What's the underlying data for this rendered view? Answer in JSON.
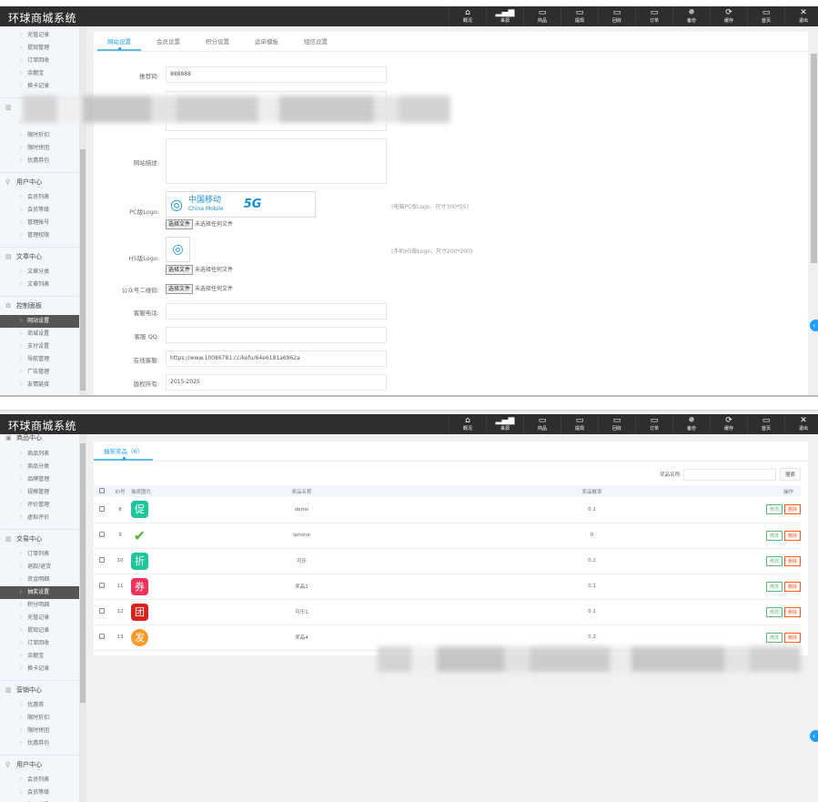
{
  "app_title": "环球商城系统",
  "topnav": [
    {
      "label": "概况",
      "icon": "home-icon",
      "glyph": "⌂"
    },
    {
      "label": "来源",
      "icon": "signal-icon",
      "glyph": "▂▄▆"
    },
    {
      "label": "商品",
      "icon": "monitor-icon",
      "glyph": "▭"
    },
    {
      "label": "提现",
      "icon": "monitor-icon",
      "glyph": "▭"
    },
    {
      "label": "回收",
      "icon": "monitor-icon",
      "glyph": "▭"
    },
    {
      "label": "订单",
      "icon": "monitor-icon",
      "glyph": "▭"
    },
    {
      "label": "备份",
      "icon": "gear-icon",
      "glyph": "✵"
    },
    {
      "label": "缓存",
      "icon": "refresh-icon",
      "glyph": "⟳"
    },
    {
      "label": "首页",
      "icon": "monitor-icon",
      "glyph": "▭"
    },
    {
      "label": "退出",
      "icon": "close-icon",
      "glyph": "✕"
    }
  ],
  "screen1": {
    "sidebar": [
      {
        "type": "item",
        "label": "充值记录"
      },
      {
        "type": "item",
        "label": "提现管理"
      },
      {
        "type": "item",
        "label": "订单回收"
      },
      {
        "type": "item",
        "label": "余额宝"
      },
      {
        "type": "item",
        "label": "换卡记录"
      },
      {
        "type": "section",
        "label": "",
        "icon": "chart-icon",
        "glyph": "▥",
        "blurred": true
      },
      {
        "type": "item",
        "label": "",
        "blurred": true
      },
      {
        "type": "item",
        "label": "限时折扣"
      },
      {
        "type": "item",
        "label": "限时拼团"
      },
      {
        "type": "item",
        "label": "优惠券包"
      },
      {
        "type": "section",
        "label": "用户中心",
        "icon": "user-icon",
        "glyph": "⚲"
      },
      {
        "type": "item",
        "label": "会员列表"
      },
      {
        "type": "item",
        "label": "会员等级"
      },
      {
        "type": "item",
        "label": "管理帐号"
      },
      {
        "type": "item",
        "label": "管理权限"
      },
      {
        "type": "section",
        "label": "文章中心",
        "icon": "document-icon",
        "glyph": "▤"
      },
      {
        "type": "item",
        "label": "文章分类"
      },
      {
        "type": "item",
        "label": "文章列表"
      },
      {
        "type": "section",
        "label": "控制面板",
        "icon": "settings-icon",
        "glyph": "⚙"
      },
      {
        "type": "item",
        "label": "网站设置",
        "active": true
      },
      {
        "type": "item",
        "label": "商城设置"
      },
      {
        "type": "item",
        "label": "支付设置"
      },
      {
        "type": "item",
        "label": "导航管理"
      },
      {
        "type": "item",
        "label": "广告管理"
      },
      {
        "type": "item",
        "label": "友情链接"
      }
    ],
    "tabs": [
      "网站设置",
      "会员设置",
      "积分设置",
      "运单模板",
      "短信设置"
    ],
    "form": {
      "referral_label": "推荐码:",
      "referral_value": "888888",
      "description_label": "网站描述:",
      "pc_logo_label": "PC版Logo:",
      "pc_logo_hint": "(电脑PC版Logo，尺寸300*55)",
      "pc_logo_brand_cn": "中国移动",
      "pc_logo_brand_en": "China Mobile",
      "pc_logo_5g": "5G",
      "h5_logo_label": "H5版Logo:",
      "h5_logo_hint": "(手机H5版Logo，尺寸200*200)",
      "qrcode_label": "公众号二维码:",
      "choose_file": "选择文件",
      "no_file": "未选择任何文件",
      "phone_label": "客服电话:",
      "phone_value": "",
      "qq_label": "客服 QQ:",
      "qq_value": "",
      "online_label": "在线客服:",
      "online_value": "https://www.10086781.cc/kefu/64e6181a6962a",
      "copyright_label": "版权所有:",
      "copyright_value": "2015-2025"
    }
  },
  "screen2": {
    "sidebar": [
      {
        "type": "section",
        "label": "商品中心",
        "icon": "goods-icon",
        "glyph": "▣"
      },
      {
        "type": "item",
        "label": "商品列表"
      },
      {
        "type": "item",
        "label": "商品分类"
      },
      {
        "type": "item",
        "label": "品牌管理"
      },
      {
        "type": "item",
        "label": "规格管理"
      },
      {
        "type": "item",
        "label": "评价管理"
      },
      {
        "type": "item",
        "label": "虚拟评价"
      },
      {
        "type": "section",
        "label": "交易中心",
        "icon": "chart-icon",
        "glyph": "▥"
      },
      {
        "type": "item",
        "label": "订单列表"
      },
      {
        "type": "item",
        "label": "退款/退货"
      },
      {
        "type": "item",
        "label": "资金明细"
      },
      {
        "type": "item",
        "label": "抽奖设置",
        "active": true
      },
      {
        "type": "item",
        "label": "积分明细"
      },
      {
        "type": "item",
        "label": "充值记录"
      },
      {
        "type": "item",
        "label": "提现记录"
      },
      {
        "type": "item",
        "label": "订单回收"
      },
      {
        "type": "item",
        "label": "余额宝"
      },
      {
        "type": "item",
        "label": "换卡记录"
      },
      {
        "type": "section",
        "label": "营销中心",
        "icon": "chart-icon",
        "glyph": "▥"
      },
      {
        "type": "item",
        "label": "优惠券"
      },
      {
        "type": "item",
        "label": "限时折扣"
      },
      {
        "type": "item",
        "label": "限时拼团"
      },
      {
        "type": "item",
        "label": "优惠券包"
      },
      {
        "type": "section",
        "label": "用户中心",
        "icon": "user-icon",
        "glyph": "⚲"
      },
      {
        "type": "item",
        "label": "会员列表"
      },
      {
        "type": "item",
        "label": "会员等级"
      },
      {
        "type": "item",
        "label": "管理帐号"
      }
    ],
    "tab": "抽奖奖品（6）",
    "search_label": "奖品名称:",
    "search_value": "",
    "search_button": "搜索",
    "columns": [
      "ID号",
      "抽奖图片",
      "奖品名称",
      "奖品概率",
      "操作"
    ],
    "rows": [
      {
        "id": "8",
        "glyph": "促",
        "color": "#1fc59b",
        "name": "demo",
        "prob": "0.1"
      },
      {
        "id": "9",
        "glyph": "✔",
        "color": "#ffffff",
        "fg": "#5fb336",
        "name": "Iphone",
        "prob": "0"
      },
      {
        "id": "10",
        "glyph": "折",
        "color": "#1fc59b",
        "name": "可乐",
        "prob": "0.2"
      },
      {
        "id": "11",
        "glyph": "券",
        "color": "#f0315a",
        "name": "奖品2",
        "prob": "0.1"
      },
      {
        "id": "12",
        "glyph": "团",
        "color": "#d9241c",
        "name": "可乐1",
        "prob": "0.1"
      },
      {
        "id": "13",
        "glyph": "发",
        "color": "#fb9a2a",
        "name": "奖品4",
        "prob": "0.2"
      }
    ],
    "edit_label": "修改",
    "delete_label": "删除"
  },
  "colors": {
    "accent": "#1e9fff",
    "header": "#2e2e2e",
    "active_menu": "#555555",
    "edit": "#5fb878",
    "delete": "#ff5722"
  }
}
